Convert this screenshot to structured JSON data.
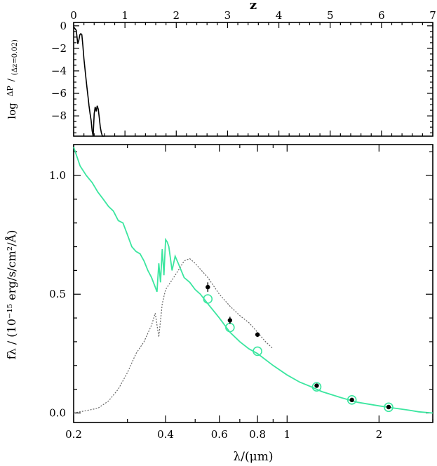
{
  "chart_data": [
    {
      "type": "line",
      "panel": "top",
      "xlabel": "z",
      "ylabel_main": "log",
      "ylabel_fraction_num": "ΔP",
      "ylabel_fraction_den": "(Δz=0.02)",
      "xlim": [
        0,
        7
      ],
      "ylim": [
        -9.8,
        0.3
      ],
      "x_ticks": [
        "0",
        "1",
        "2",
        "3",
        "4",
        "5",
        "6",
        "7"
      ],
      "x_tick_values": [
        0,
        1,
        2,
        3,
        4,
        5,
        6,
        7
      ],
      "y_ticks": [
        "0",
        "−2",
        "−4",
        "−6",
        "−8"
      ],
      "y_tick_values": [
        0,
        -2,
        -4,
        -6,
        -8
      ],
      "series": [
        {
          "color": "#000000",
          "style": "solid",
          "x": [
            0.0,
            0.05,
            0.08,
            0.1,
            0.12,
            0.14,
            0.16,
            0.18,
            0.2,
            0.22,
            0.24,
            0.26,
            0.28,
            0.3,
            0.32,
            0.34,
            0.36,
            0.38,
            0.4,
            0.42,
            0.44,
            0.46,
            0.48,
            0.5,
            0.52,
            0.54,
            0.56,
            0.58,
            0.6
          ],
          "y": [
            -0.1,
            -0.4,
            -1.6,
            -1.3,
            -0.8,
            -0.7,
            -0.8,
            -1.8,
            -2.9,
            -3.8,
            -4.7,
            -5.5,
            -6.3,
            -7.1,
            -7.8,
            -8.4,
            -9.3,
            -9.9,
            -7.8,
            -7.2,
            -7.6,
            -7.1,
            -7.4,
            -8.2,
            -9.0,
            -9.5,
            -9.9,
            -9.9,
            -9.9
          ]
        }
      ]
    },
    {
      "type": "line",
      "panel": "bottom",
      "xlabel": "λ/(μm)",
      "ylabel": "fλ / (10⁻¹⁵ erg/s/cm²/Å)",
      "x_scale": "log",
      "xlim": [
        0.2,
        3.0
      ],
      "ylim": [
        -0.04,
        1.13
      ],
      "x_ticks": [
        "0.2",
        "0.4",
        "0.6",
        "0.8",
        "1",
        "2"
      ],
      "x_tick_values": [
        0.2,
        0.4,
        0.6,
        0.8,
        1.0,
        2.0
      ],
      "y_ticks": [
        "0.0",
        "0.5",
        "1.0"
      ],
      "y_tick_values": [
        0.0,
        0.5,
        1.0
      ],
      "series": [
        {
          "color": "#3ce6a0",
          "style": "solid",
          "x": [
            0.2,
            0.21,
            0.22,
            0.23,
            0.24,
            0.25,
            0.26,
            0.27,
            0.28,
            0.29,
            0.3,
            0.31,
            0.32,
            0.33,
            0.34,
            0.35,
            0.36,
            0.37,
            0.375,
            0.38,
            0.385,
            0.39,
            0.395,
            0.4,
            0.405,
            0.41,
            0.42,
            0.43,
            0.44,
            0.45,
            0.46,
            0.48,
            0.5,
            0.52,
            0.55,
            0.6,
            0.65,
            0.7,
            0.75,
            0.8,
            0.9,
            1.0,
            1.1,
            1.2,
            1.3,
            1.5,
            1.7,
            2.0,
            2.2,
            2.5,
            2.7,
            3.0
          ],
          "y": [
            1.12,
            1.04,
            1.0,
            0.97,
            0.93,
            0.9,
            0.87,
            0.85,
            0.81,
            0.8,
            0.75,
            0.7,
            0.68,
            0.67,
            0.64,
            0.6,
            0.57,
            0.53,
            0.51,
            0.63,
            0.55,
            0.69,
            0.58,
            0.73,
            0.72,
            0.7,
            0.6,
            0.66,
            0.63,
            0.6,
            0.57,
            0.55,
            0.52,
            0.5,
            0.46,
            0.4,
            0.34,
            0.3,
            0.27,
            0.25,
            0.2,
            0.16,
            0.13,
            0.11,
            0.09,
            0.065,
            0.045,
            0.03,
            0.022,
            0.012,
            0.005,
            0.0
          ]
        },
        {
          "color": "#666666",
          "style": "dotted",
          "x": [
            0.2,
            0.22,
            0.24,
            0.26,
            0.28,
            0.3,
            0.32,
            0.34,
            0.36,
            0.37,
            0.38,
            0.39,
            0.4,
            0.42,
            0.44,
            0.46,
            0.48,
            0.5,
            0.55,
            0.6,
            0.65,
            0.7,
            0.75,
            0.8,
            0.85,
            0.9
          ],
          "y": [
            0.0,
            0.01,
            0.02,
            0.05,
            0.1,
            0.17,
            0.25,
            0.3,
            0.37,
            0.42,
            0.32,
            0.46,
            0.52,
            0.56,
            0.6,
            0.64,
            0.65,
            0.63,
            0.57,
            0.5,
            0.45,
            0.41,
            0.38,
            0.34,
            0.3,
            0.27
          ]
        }
      ],
      "observed_points": {
        "color": "#000000",
        "x": [
          0.55,
          0.65,
          0.8,
          1.25,
          1.63,
          2.15
        ],
        "y": [
          0.53,
          0.39,
          0.33,
          0.115,
          0.055,
          0.025
        ],
        "yerr": [
          0.02,
          0.015,
          0.01,
          0.006,
          0.005,
          0.004
        ]
      },
      "model_points": {
        "color": "#3ce6a0",
        "marker": "open-circle",
        "x": [
          0.55,
          0.65,
          0.8,
          1.25,
          1.63,
          2.15
        ],
        "y": [
          0.48,
          0.36,
          0.26,
          0.11,
          0.055,
          0.024
        ]
      }
    }
  ]
}
